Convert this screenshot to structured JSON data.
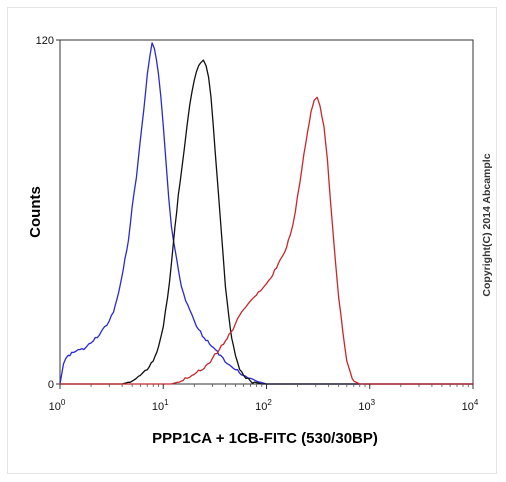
{
  "chart_data": {
    "type": "line",
    "title": "",
    "xlabel": "PPP1CA + 1CB-FITC (530/30BP)",
    "ylabel": "Counts",
    "x_scale": "log",
    "xlim": [
      1,
      10000
    ],
    "ylim": [
      0,
      120
    ],
    "x_tick_labels": [
      {
        "base": "10",
        "exp": "0"
      },
      {
        "base": "10",
        "exp": "1"
      },
      {
        "base": "10",
        "exp": "2"
      },
      {
        "base": "10",
        "exp": "3"
      },
      {
        "base": "10",
        "exp": "4"
      }
    ],
    "y_tick_labels": [
      "120",
      "0"
    ],
    "grid": false,
    "annotation": "Copyright(C) 2014 Abcamplc",
    "series": [
      {
        "color": "#2a2ad0",
        "x": [
          1.0,
          1.08,
          1.2,
          1.35,
          1.5,
          1.7,
          1.9,
          2.1,
          2.4,
          2.7,
          3.0,
          3.3,
          3.7,
          4.1,
          4.6,
          5.0,
          5.5,
          6.0,
          6.5,
          7.0,
          7.4,
          7.8,
          8.2,
          8.6,
          9.0,
          9.5,
          10.0,
          10.6,
          11.3,
          12.0,
          13.0,
          14.0,
          15.0,
          16.5,
          18.0,
          20.0,
          22.0,
          25.0,
          28.0,
          32.0,
          36.0,
          42.0,
          50.0,
          60.0,
          70.0,
          80.0,
          90.0,
          100.0,
          150.0,
          1000.0,
          10000.0
        ],
        "values": [
          0,
          7,
          10,
          11,
          12,
          12,
          14,
          15,
          17,
          20,
          22,
          25,
          32,
          40,
          50,
          62,
          72,
          85,
          96,
          108,
          114,
          119,
          117,
          113,
          108,
          100,
          90,
          78,
          65,
          55,
          47,
          40,
          34,
          29,
          26,
          22,
          19,
          16,
          14,
          12,
          10,
          7,
          5,
          3,
          2,
          1,
          0.5,
          0,
          0,
          0,
          0
        ]
      },
      {
        "color": "#111111",
        "x": [
          1.0,
          4.0,
          5.0,
          5.5,
          6.0,
          7.0,
          8.0,
          9.0,
          10.0,
          11.0,
          12.0,
          13.0,
          14.0,
          15.0,
          16.0,
          17.0,
          18.0,
          19.0,
          20.0,
          21.0,
          22.0,
          23.0,
          24.5,
          26.0,
          27.5,
          29.0,
          30.5,
          32.0,
          34.0,
          36.0,
          38.0,
          40.0,
          43.0,
          46.0,
          50.0,
          55.0,
          60.0,
          70.0,
          80.0,
          90.0,
          100.0,
          1000.0,
          10000.0
        ],
        "values": [
          0,
          0,
          1,
          2,
          3,
          5,
          8,
          13,
          20,
          30,
          42,
          55,
          66,
          74,
          82,
          90,
          97,
          102,
          106,
          109,
          111,
          112,
          113,
          111,
          107,
          100,
          90,
          80,
          68,
          56,
          45,
          34,
          24,
          16,
          10,
          5,
          3,
          1,
          0.5,
          0,
          0,
          0,
          0
        ]
      },
      {
        "color": "#c8262a",
        "x": [
          1.0,
          12.0,
          15.0,
          17.0,
          19.0,
          21.0,
          24.0,
          27.0,
          30.0,
          35.0,
          40.0,
          45.0,
          50.0,
          55.0,
          60.0,
          70.0,
          80.0,
          90.0,
          100.0,
          115.0,
          130.0,
          150.0,
          170.0,
          190.0,
          210.0,
          230.0,
          250.0,
          270.0,
          290.0,
          310.0,
          330.0,
          360.0,
          390.0,
          420.0,
          460.0,
          500.0,
          550.0,
          600.0,
          650.0,
          700.0,
          800.0,
          1000.0,
          10000.0
        ],
        "values": [
          0,
          0,
          1,
          2,
          3,
          4,
          5,
          7,
          9,
          12,
          15,
          18,
          21,
          24,
          26,
          29,
          31,
          33,
          35,
          38,
          42,
          46,
          52,
          60,
          70,
          80,
          88,
          95,
          99,
          100,
          97,
          90,
          78,
          62,
          45,
          30,
          18,
          8,
          4,
          1,
          0,
          0,
          0
        ]
      }
    ]
  }
}
